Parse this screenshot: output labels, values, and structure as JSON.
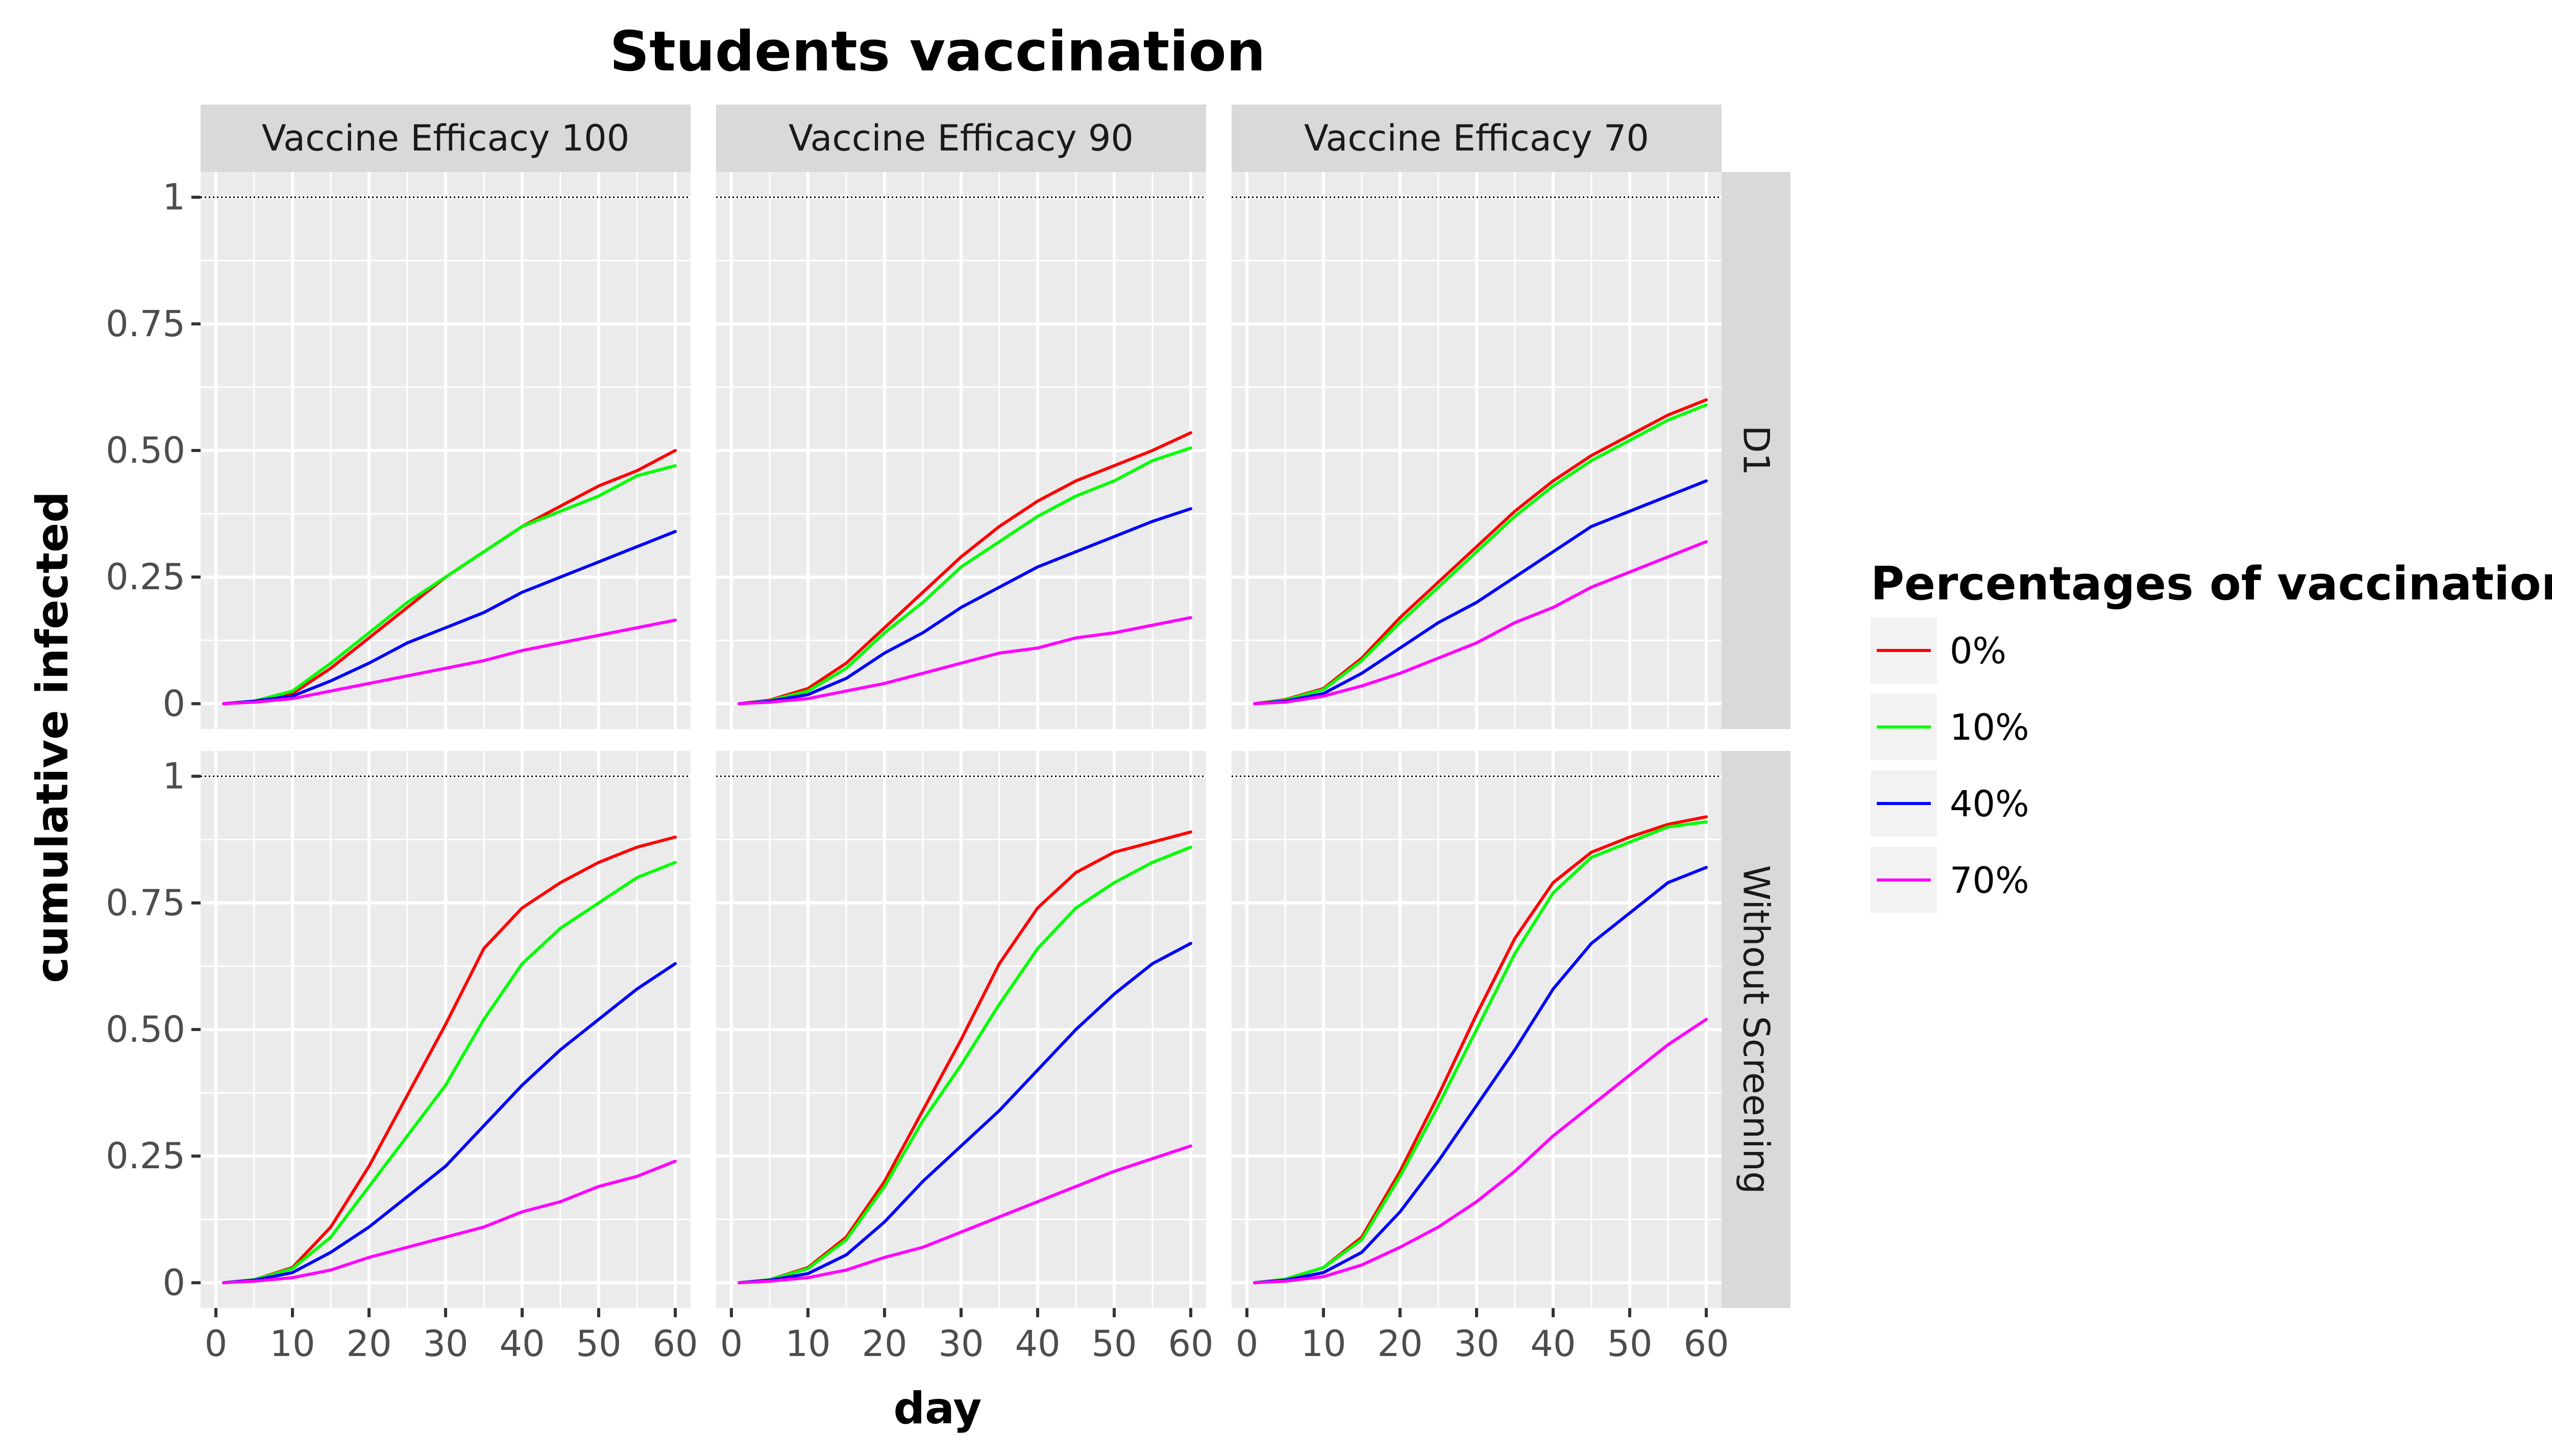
{
  "chart_data": {
    "type": "line",
    "title": "Students vaccination",
    "xlabel": "day",
    "ylabel": "cumulative infected",
    "xlim": [
      -2,
      62
    ],
    "ylim": [
      -0.05,
      1.05
    ],
    "x_ticks": [
      0,
      10,
      20,
      30,
      40,
      50,
      60
    ],
    "y_ticks": [
      0,
      0.25,
      0.5,
      0.75,
      1
    ],
    "y_tick_labels": [
      "0",
      "0.25",
      "0.50",
      "0.75",
      "1"
    ],
    "reference_line": 1,
    "grid": true,
    "facet_columns": [
      "Vaccine Efficacy 100",
      "Vaccine Efficacy 90",
      "Vaccine Efficacy 70"
    ],
    "facet_rows": [
      "D1",
      "Without Screening"
    ],
    "legend": {
      "title": "Percentages of vaccination",
      "position": "right",
      "entries": [
        {
          "label": "0%",
          "color": "#ff0000"
        },
        {
          "label": "10%",
          "color": "#00ff00"
        },
        {
          "label": "40%",
          "color": "#0000ff"
        },
        {
          "label": "70%",
          "color": "#ff00ff"
        }
      ]
    },
    "x": [
      1,
      5,
      10,
      15,
      20,
      25,
      30,
      35,
      40,
      45,
      50,
      55,
      60
    ],
    "panels": [
      {
        "row": 0,
        "col": 0,
        "series": [
          {
            "name": "0%",
            "values": [
              0,
              0.005,
              0.02,
              0.07,
              0.13,
              0.19,
              0.25,
              0.3,
              0.35,
              0.39,
              0.43,
              0.46,
              0.5
            ]
          },
          {
            "name": "10%",
            "values": [
              0,
              0.005,
              0.025,
              0.08,
              0.14,
              0.2,
              0.25,
              0.3,
              0.35,
              0.38,
              0.41,
              0.45,
              0.47
            ]
          },
          {
            "name": "40%",
            "values": [
              0,
              0.005,
              0.015,
              0.045,
              0.08,
              0.12,
              0.15,
              0.18,
              0.22,
              0.25,
              0.28,
              0.31,
              0.34
            ]
          },
          {
            "name": "70%",
            "values": [
              0,
              0.003,
              0.01,
              0.025,
              0.04,
              0.055,
              0.07,
              0.085,
              0.105,
              0.12,
              0.135,
              0.15,
              0.165
            ]
          }
        ]
      },
      {
        "row": 0,
        "col": 1,
        "series": [
          {
            "name": "0%",
            "values": [
              0,
              0.007,
              0.03,
              0.08,
              0.15,
              0.22,
              0.29,
              0.35,
              0.4,
              0.44,
              0.47,
              0.5,
              0.535
            ]
          },
          {
            "name": "10%",
            "values": [
              0,
              0.006,
              0.025,
              0.07,
              0.14,
              0.2,
              0.27,
              0.32,
              0.37,
              0.41,
              0.44,
              0.48,
              0.505
            ]
          },
          {
            "name": "40%",
            "values": [
              0,
              0.005,
              0.018,
              0.05,
              0.1,
              0.14,
              0.19,
              0.23,
              0.27,
              0.3,
              0.33,
              0.36,
              0.385
            ]
          },
          {
            "name": "70%",
            "values": [
              0,
              0.003,
              0.01,
              0.025,
              0.04,
              0.06,
              0.08,
              0.1,
              0.11,
              0.13,
              0.14,
              0.155,
              0.17
            ]
          }
        ]
      },
      {
        "row": 0,
        "col": 2,
        "series": [
          {
            "name": "0%",
            "values": [
              0,
              0.008,
              0.03,
              0.09,
              0.17,
              0.24,
              0.31,
              0.38,
              0.44,
              0.49,
              0.53,
              0.57,
              0.6
            ]
          },
          {
            "name": "10%",
            "values": [
              0,
              0.007,
              0.028,
              0.085,
              0.16,
              0.23,
              0.3,
              0.37,
              0.43,
              0.48,
              0.52,
              0.56,
              0.59
            ]
          },
          {
            "name": "40%",
            "values": [
              0,
              0.005,
              0.02,
              0.06,
              0.11,
              0.16,
              0.2,
              0.25,
              0.3,
              0.35,
              0.38,
              0.41,
              0.44
            ]
          },
          {
            "name": "70%",
            "values": [
              0,
              0.003,
              0.015,
              0.035,
              0.06,
              0.09,
              0.12,
              0.16,
              0.19,
              0.23,
              0.26,
              0.29,
              0.32
            ]
          }
        ]
      },
      {
        "row": 1,
        "col": 0,
        "series": [
          {
            "name": "0%",
            "values": [
              0,
              0.006,
              0.03,
              0.11,
              0.23,
              0.37,
              0.51,
              0.66,
              0.74,
              0.79,
              0.83,
              0.86,
              0.88
            ]
          },
          {
            "name": "10%",
            "values": [
              0,
              0.006,
              0.028,
              0.09,
              0.19,
              0.29,
              0.39,
              0.52,
              0.63,
              0.7,
              0.75,
              0.8,
              0.83
            ]
          },
          {
            "name": "40%",
            "values": [
              0,
              0.005,
              0.02,
              0.06,
              0.11,
              0.17,
              0.23,
              0.31,
              0.39,
              0.46,
              0.52,
              0.58,
              0.63
            ]
          },
          {
            "name": "70%",
            "values": [
              0,
              0.003,
              0.01,
              0.025,
              0.05,
              0.07,
              0.09,
              0.11,
              0.14,
              0.16,
              0.19,
              0.21,
              0.24
            ]
          }
        ]
      },
      {
        "row": 1,
        "col": 1,
        "series": [
          {
            "name": "0%",
            "values": [
              0,
              0.006,
              0.03,
              0.09,
              0.2,
              0.34,
              0.48,
              0.63,
              0.74,
              0.81,
              0.85,
              0.87,
              0.89
            ]
          },
          {
            "name": "10%",
            "values": [
              0,
              0.006,
              0.028,
              0.085,
              0.19,
              0.32,
              0.43,
              0.55,
              0.66,
              0.74,
              0.79,
              0.83,
              0.86
            ]
          },
          {
            "name": "40%",
            "values": [
              0,
              0.005,
              0.018,
              0.055,
              0.12,
              0.2,
              0.27,
              0.34,
              0.42,
              0.5,
              0.57,
              0.63,
              0.67
            ]
          },
          {
            "name": "70%",
            "values": [
              0,
              0.003,
              0.01,
              0.025,
              0.05,
              0.07,
              0.1,
              0.13,
              0.16,
              0.19,
              0.22,
              0.245,
              0.27
            ]
          }
        ]
      },
      {
        "row": 1,
        "col": 2,
        "series": [
          {
            "name": "0%",
            "values": [
              0,
              0.007,
              0.03,
              0.09,
              0.22,
              0.37,
              0.53,
              0.68,
              0.79,
              0.85,
              0.88,
              0.905,
              0.92
            ]
          },
          {
            "name": "10%",
            "values": [
              0,
              0.007,
              0.03,
              0.085,
              0.21,
              0.35,
              0.5,
              0.65,
              0.77,
              0.84,
              0.87,
              0.9,
              0.91
            ]
          },
          {
            "name": "40%",
            "values": [
              0,
              0.005,
              0.02,
              0.06,
              0.14,
              0.24,
              0.35,
              0.46,
              0.58,
              0.67,
              0.73,
              0.79,
              0.82
            ]
          },
          {
            "name": "70%",
            "values": [
              0,
              0.003,
              0.012,
              0.035,
              0.07,
              0.11,
              0.16,
              0.22,
              0.29,
              0.35,
              0.41,
              0.47,
              0.52
            ]
          }
        ]
      }
    ]
  }
}
